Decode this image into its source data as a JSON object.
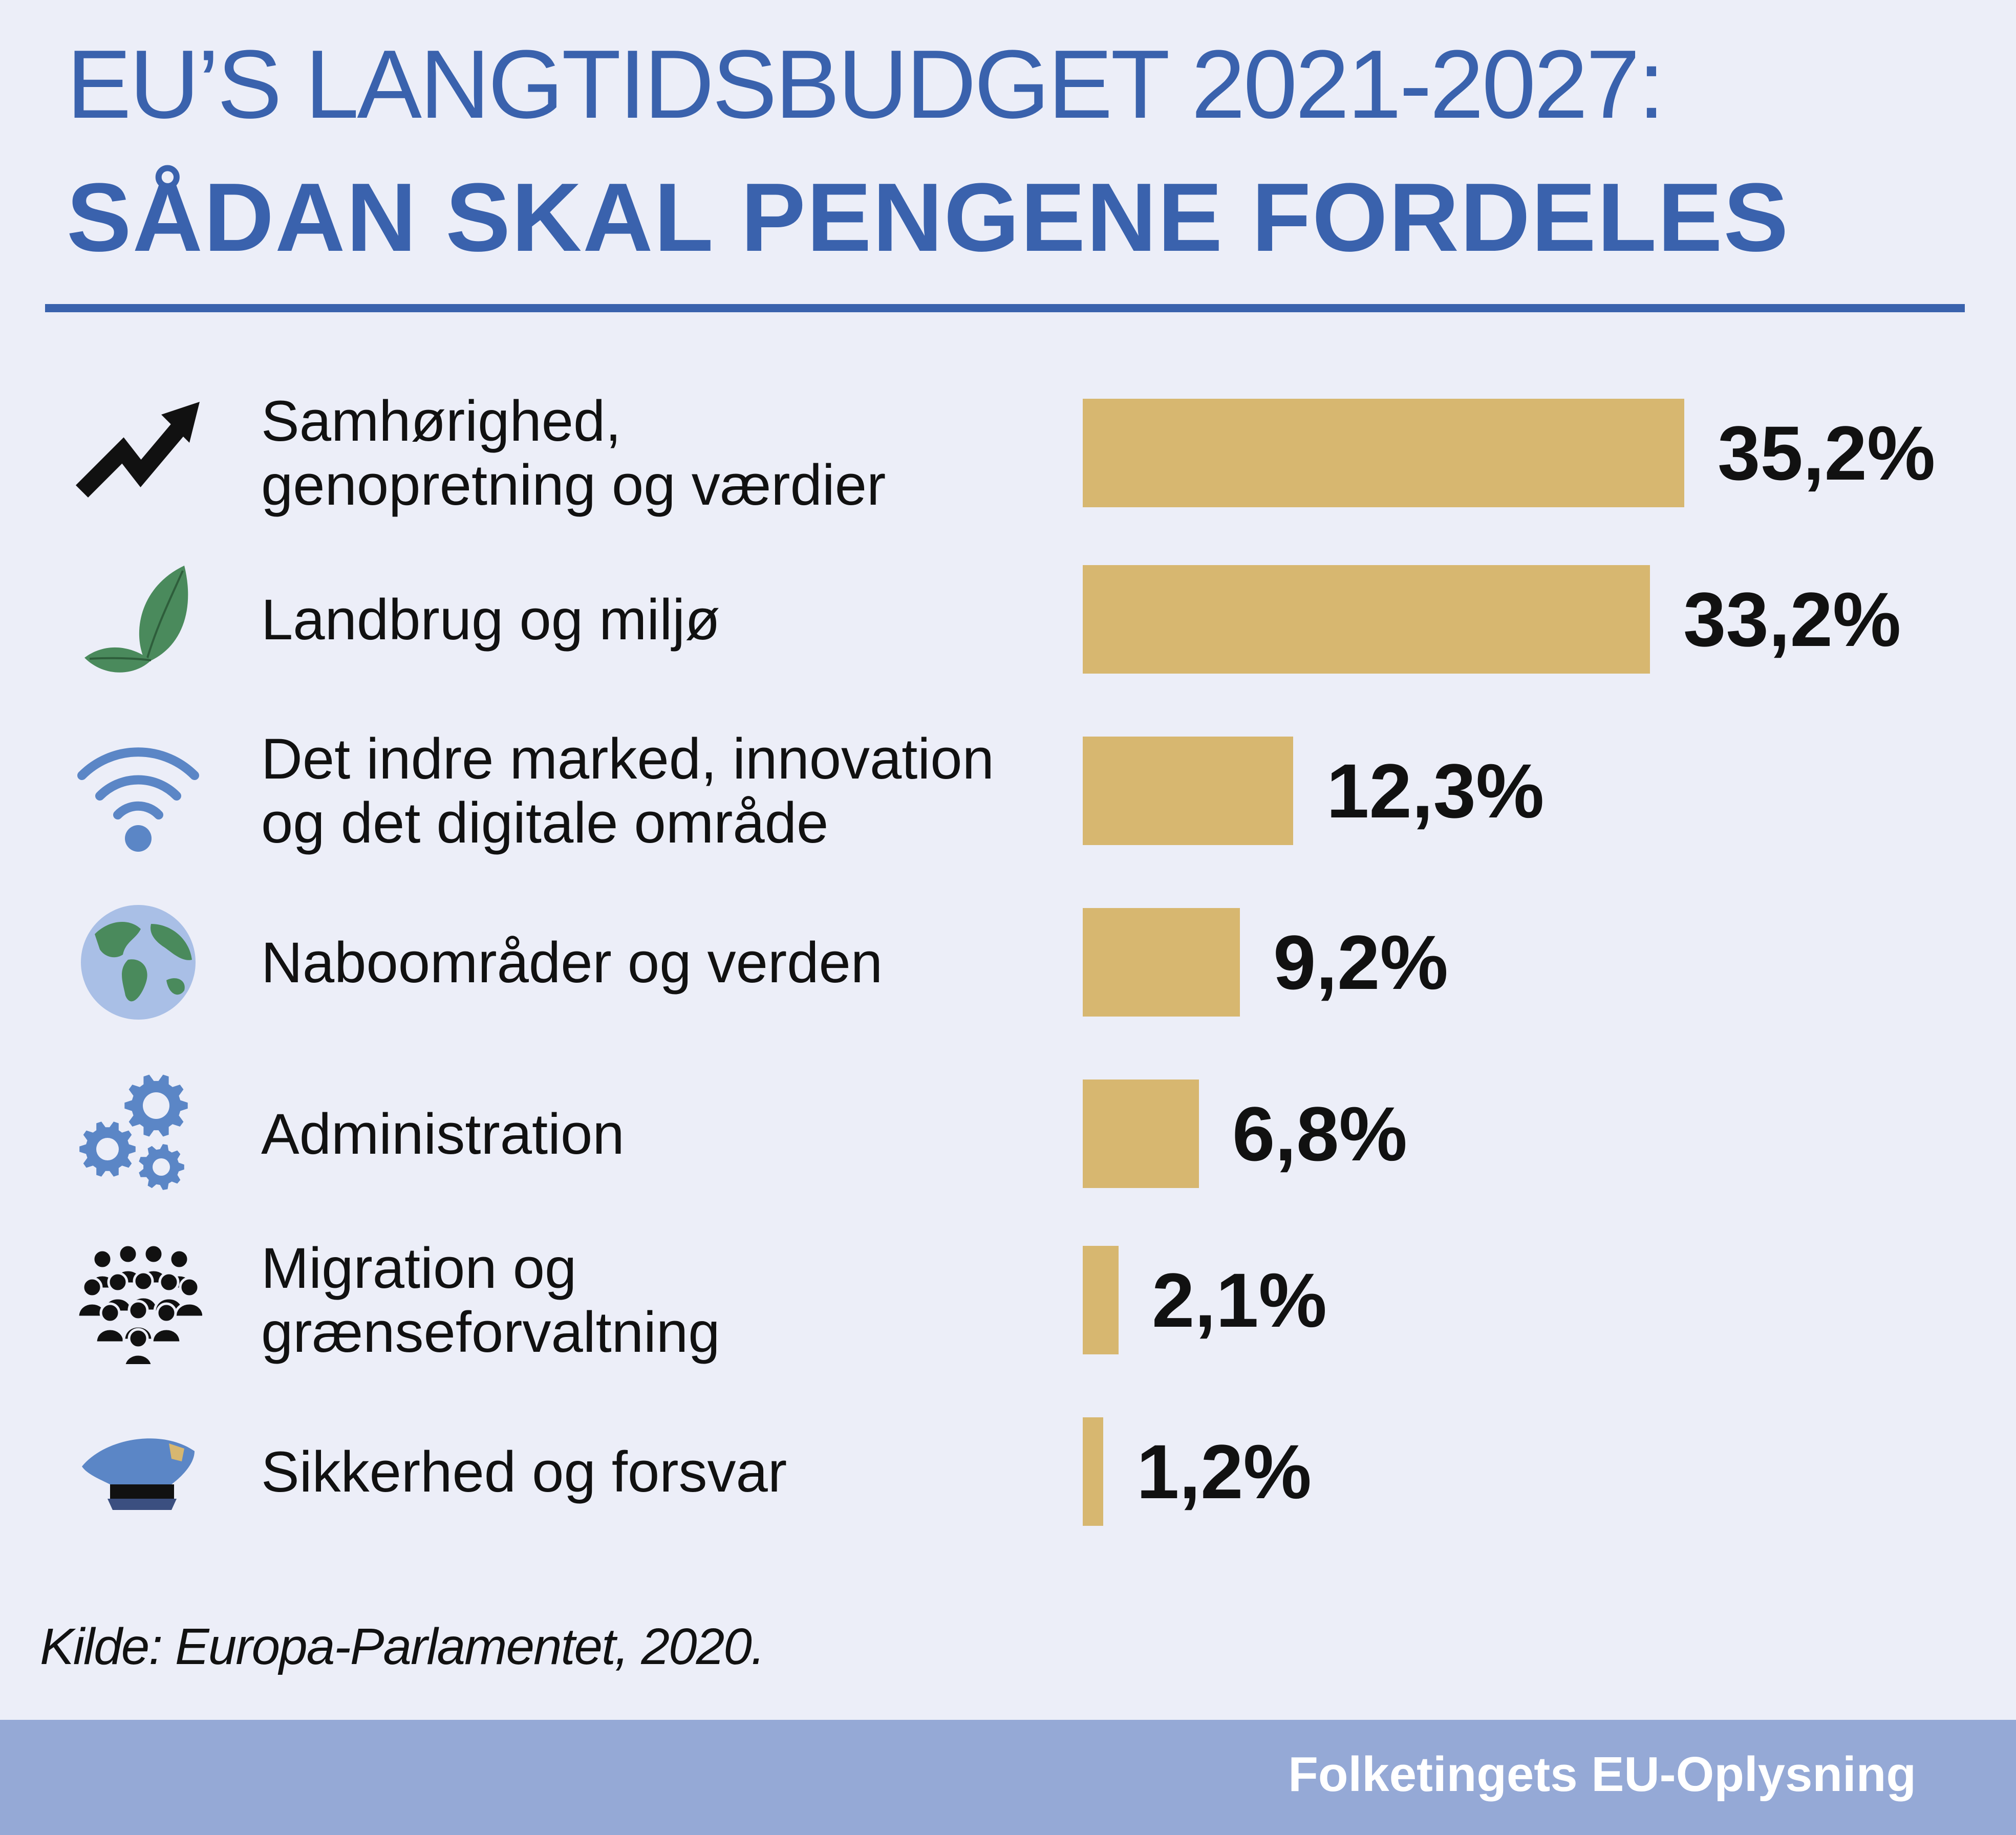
{
  "header": {
    "title_line1": "EU’S LANGTIDSBUDGET 2021-2027:",
    "title_line2": "SÅDAN SKAL PENGENE FORDELES"
  },
  "chart_data": {
    "type": "bar",
    "orientation": "horizontal",
    "categories": [
      "Samhørighed, genopretning og værdier",
      "Landbrug og miljø",
      "Det indre marked, innovation og det digitale område",
      "Naboområder og verden",
      "Administration",
      "Migration og grænseforvaltning",
      "Sikkerhed og forsvar"
    ],
    "values": [
      35.2,
      33.2,
      12.3,
      9.2,
      6.8,
      2.1,
      1.2
    ],
    "value_labels": [
      "35,2%",
      "33,2%",
      "12,3%",
      "9,2%",
      "6,8%",
      "2,1%",
      "1,2%"
    ],
    "category_lines": [
      [
        "Samhørighed,",
        "genopretning og værdier"
      ],
      [
        "Landbrug og miljø"
      ],
      [
        "Det indre marked, innovation",
        "og det digitale område"
      ],
      [
        "Naboområder og verden"
      ],
      [
        "Administration"
      ],
      [
        "Migration og",
        "grænseforvaltning"
      ],
      [
        "Sikkerhed og forsvar"
      ]
    ],
    "icons": [
      "trend-arrow-icon",
      "leaves-icon",
      "wifi-icon",
      "globe-icon",
      "gears-icon",
      "people-crowd-icon",
      "police-cap-icon"
    ],
    "bar_color": "#d7b770",
    "xlim": [
      0,
      35.2
    ],
    "grid": false,
    "legend": "none"
  },
  "source": "Kilde: Europa-Parlamentet, 2020.",
  "footer": {
    "brand": "Folketingets EU-Oplysning"
  },
  "colors": {
    "title": "#3a62ad",
    "background": "#eceef8",
    "footer": "#95a9d6",
    "icon_blue": "#5b86c6",
    "icon_green": "#4a8a5c"
  }
}
